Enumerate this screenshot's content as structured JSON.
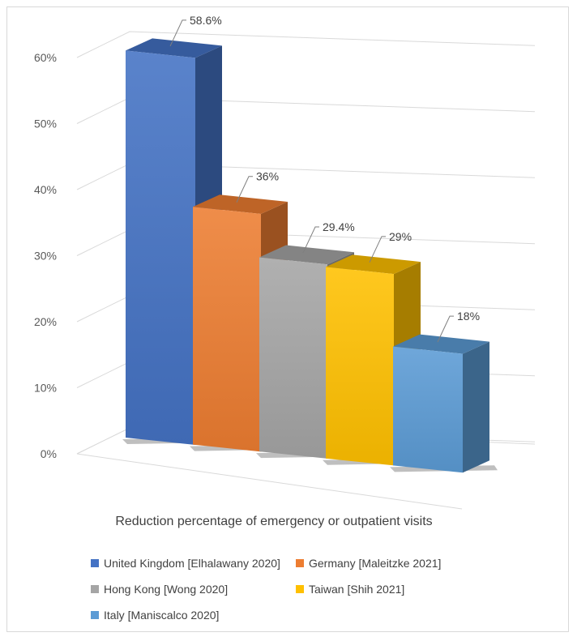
{
  "chart_data": {
    "type": "bar",
    "style": "3d-clustered-column",
    "categories": [
      "United Kingdom [Elhalawany 2020]",
      "Germany [Maleitzke 2021]",
      "Hong Kong [Wong 2020]",
      "Taiwan [Shih 2021]",
      "Italy [Maniscalco 2020]"
    ],
    "values": [
      58.6,
      36,
      29.4,
      29,
      18
    ],
    "data_labels": [
      "58.6%",
      "36%",
      "29.4%",
      "29%",
      "18%"
    ],
    "colors": [
      "#4472C4",
      "#ED7D31",
      "#A5A5A5",
      "#FFC000",
      "#5B9BD5"
    ],
    "ylim": [
      0,
      60
    ],
    "yticks": [
      "0%",
      "10%",
      "20%",
      "30%",
      "40%",
      "50%",
      "60%"
    ],
    "xlabel": "Reduction percentage of emergency or outpatient visits",
    "legend_position": "bottom",
    "grid": true
  }
}
